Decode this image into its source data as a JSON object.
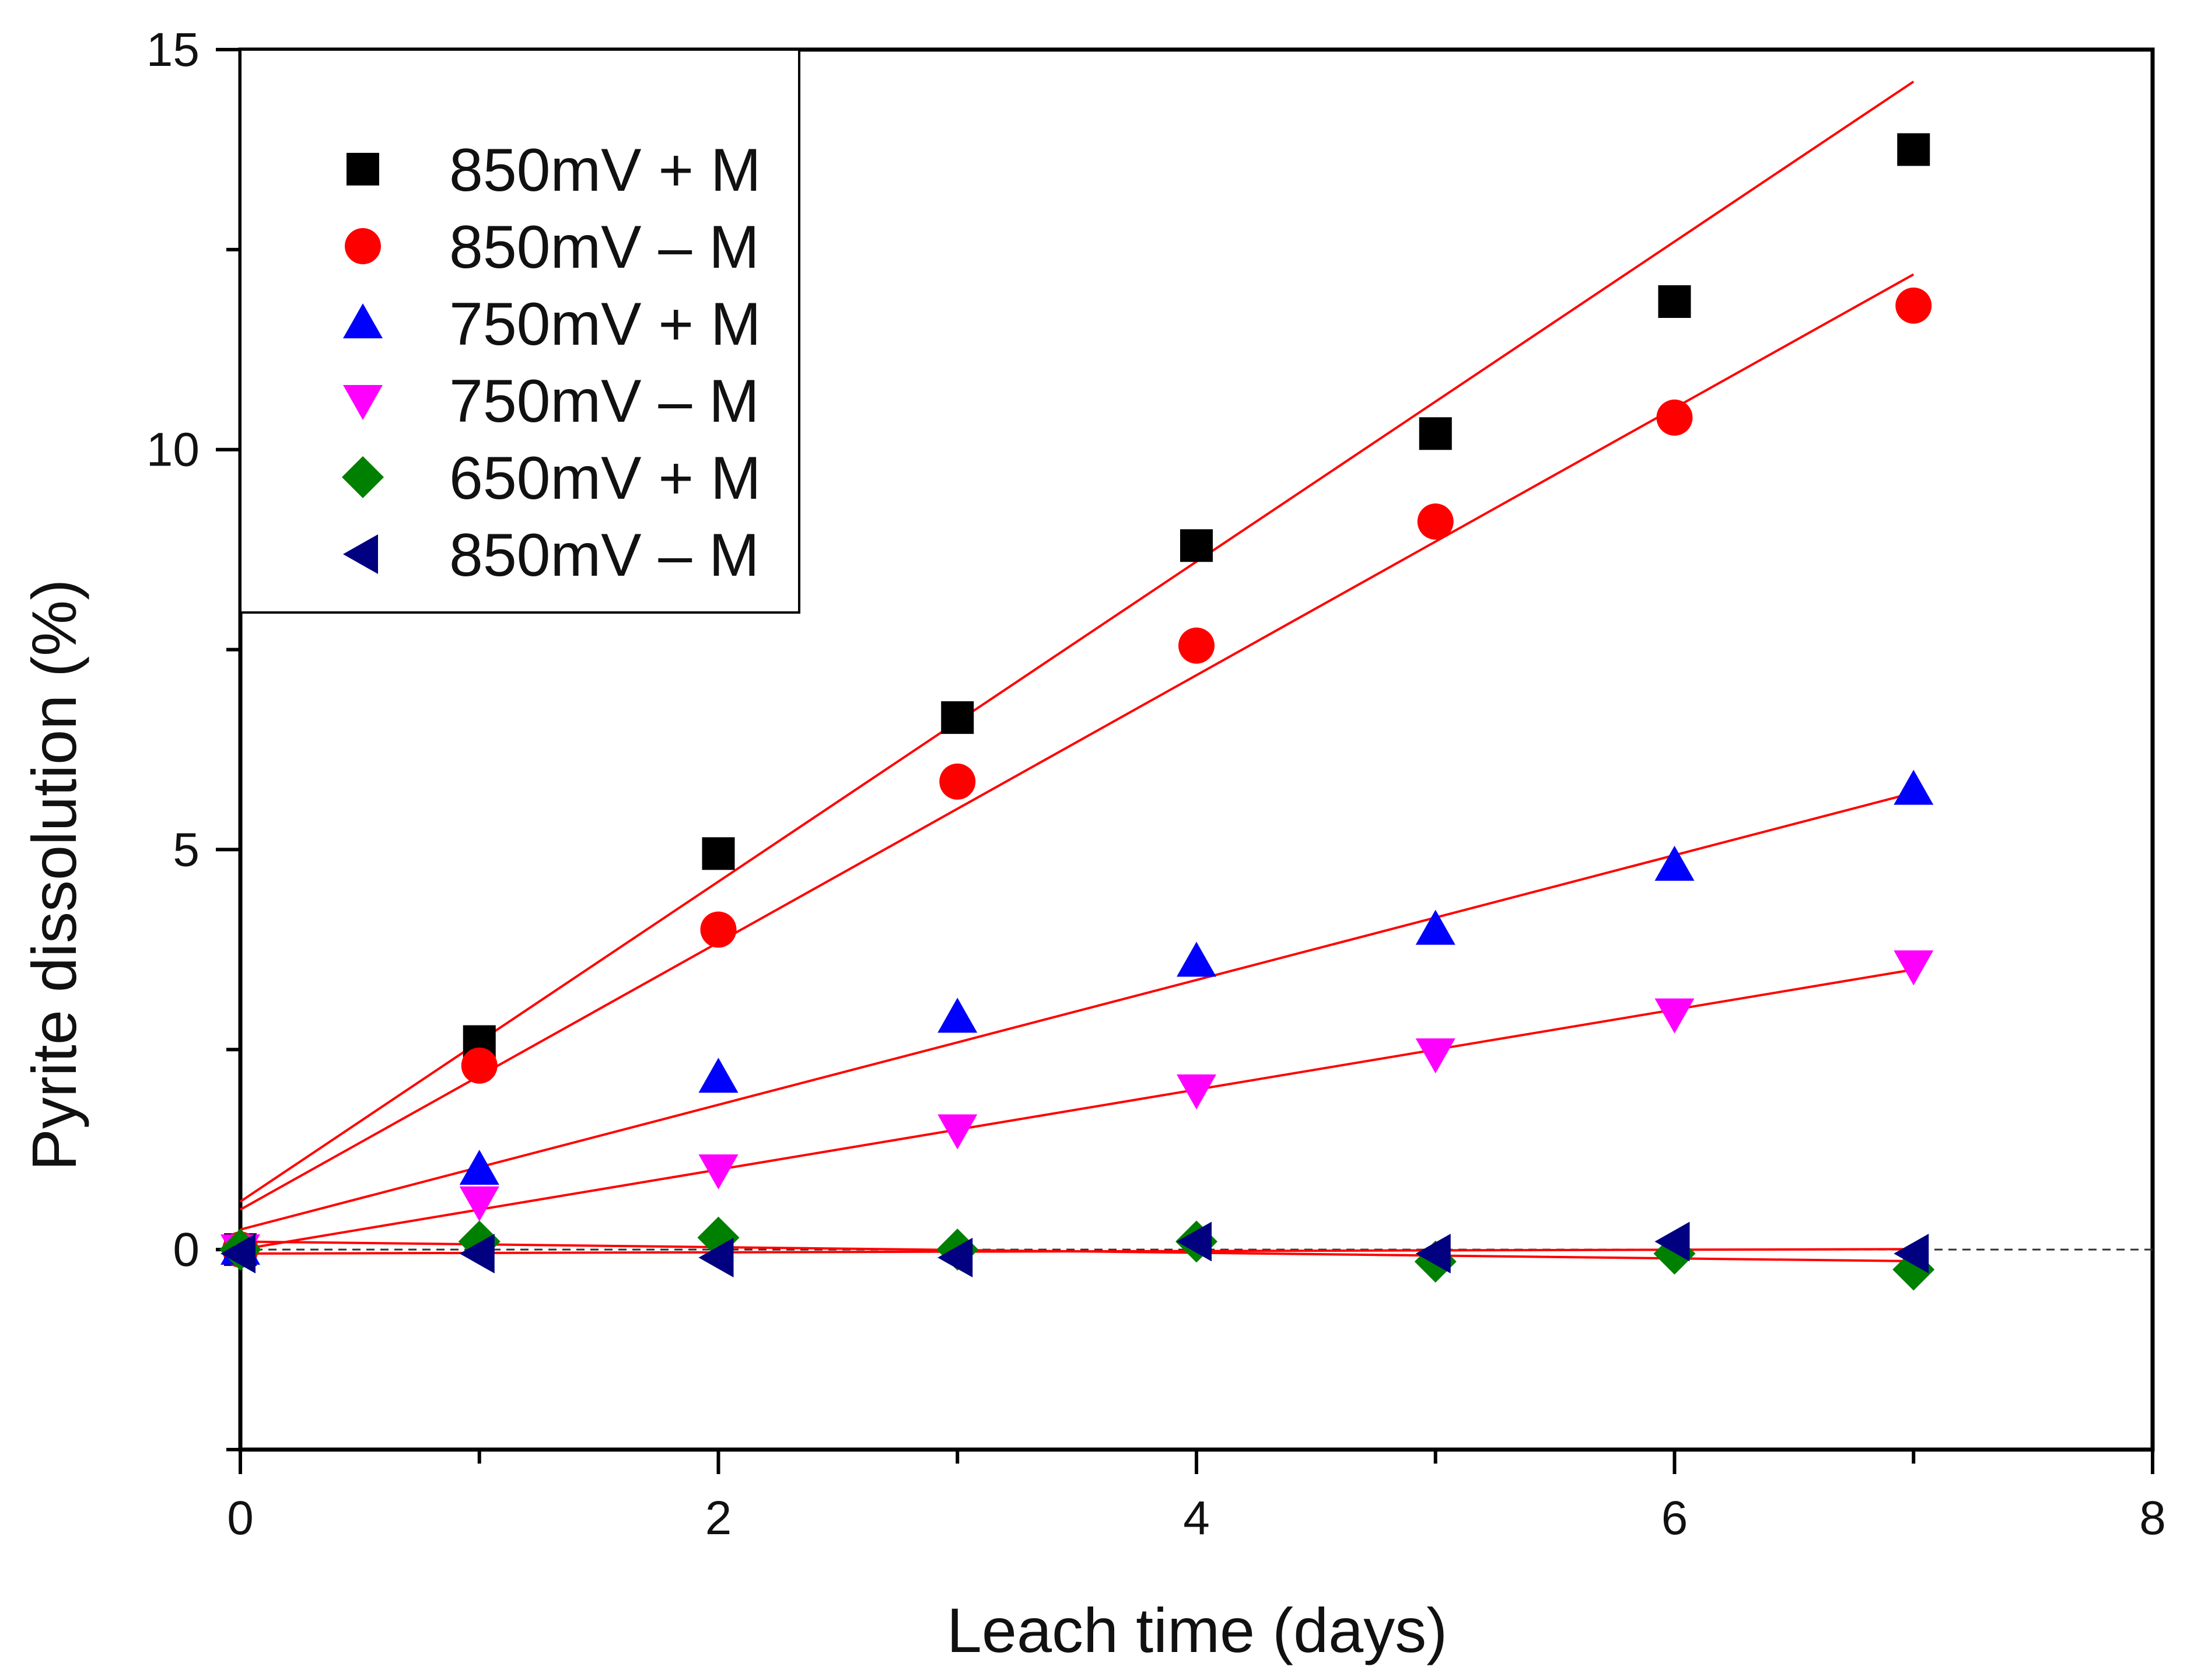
{
  "chart_data": {
    "type": "scatter",
    "xlabel": "Leach time (days)",
    "ylabel": "Pyrite dissolution (%)",
    "xlim": [
      0,
      8
    ],
    "ylim": [
      -2.5,
      15
    ],
    "xticks": [
      0,
      2,
      4,
      6,
      8
    ],
    "yticks": [
      0,
      5,
      10,
      15
    ],
    "grid": false,
    "legend_position": "top-left",
    "reference_line": {
      "y": 0,
      "style": "dashed"
    },
    "series": [
      {
        "name": "850mV + M",
        "marker": "square",
        "color": "#000000",
        "x": [
          0,
          1,
          2,
          3,
          4,
          5,
          6,
          7
        ],
        "y": [
          0.0,
          2.6,
          4.95,
          6.65,
          8.8,
          10.2,
          11.85,
          13.75
        ],
        "fit": [
          0.6,
          2.0
        ]
      },
      {
        "name": "850mV – M",
        "marker": "circle",
        "color": "#ff0000",
        "x": [
          0,
          1,
          2,
          3,
          4,
          5,
          6,
          7
        ],
        "y": [
          0.0,
          2.3,
          4.0,
          5.85,
          7.55,
          9.1,
          10.4,
          11.8
        ],
        "fit": [
          0.5,
          1.67
        ]
      },
      {
        "name": "750mV + M",
        "marker": "triangle-up",
        "color": "#0000ff",
        "x": [
          0,
          1,
          2,
          3,
          4,
          5,
          6,
          7
        ],
        "y": [
          0.0,
          1.0,
          2.15,
          2.9,
          3.6,
          4.0,
          4.8,
          5.75
        ],
        "fit": [
          0.25,
          0.78
        ]
      },
      {
        "name": "750mV – M",
        "marker": "triangle-down",
        "color": "#ff00ff",
        "x": [
          0,
          1,
          2,
          3,
          4,
          5,
          6,
          7
        ],
        "y": [
          0.0,
          0.6,
          1.0,
          1.5,
          2.0,
          2.45,
          2.95,
          3.55
        ],
        "fit": [
          0.0,
          0.5
        ]
      },
      {
        "name": "650mV + M",
        "marker": "diamond",
        "color": "#008000",
        "x": [
          0,
          1,
          2,
          3,
          4,
          5,
          6,
          7
        ],
        "y": [
          0.0,
          0.1,
          0.15,
          0.0,
          0.1,
          -0.15,
          -0.05,
          -0.25
        ],
        "fit": [
          0.1,
          -0.035
        ]
      },
      {
        "name": "850mV – M",
        "marker": "triangle-left",
        "color": "#000080",
        "x": [
          0,
          1,
          2,
          3,
          4,
          5,
          6,
          7
        ],
        "y": [
          -0.05,
          -0.05,
          -0.1,
          -0.1,
          0.1,
          -0.05,
          0.1,
          -0.05
        ],
        "fit": [
          -0.05,
          0.008
        ]
      }
    ],
    "fit_line_color": "#ff0000"
  }
}
